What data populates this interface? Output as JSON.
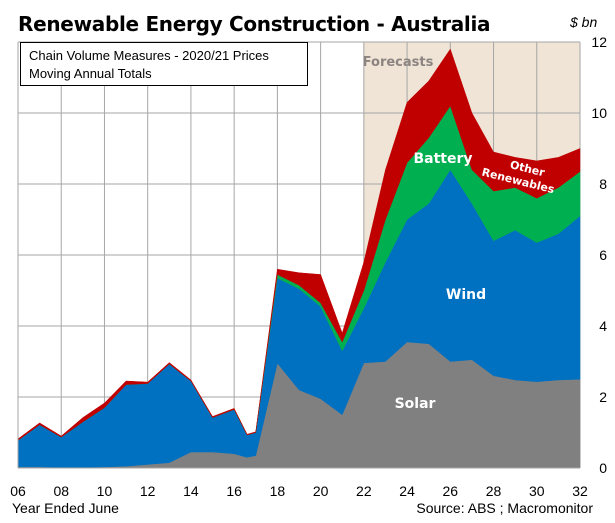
{
  "chart_data": {
    "type": "area",
    "stacked": true,
    "title": "Renewable Energy Construction - Australia",
    "subtitle_lines": [
      "Chain Volume Measures - 2020/21 Prices",
      "Moving Annual Totals"
    ],
    "xlabel": "Year Ended June",
    "ylabel": "$ bn",
    "source": "Source: ABS ; Macromonitor",
    "xlim": [
      6,
      32
    ],
    "ylim": [
      0,
      12
    ],
    "y_axis_side": "right",
    "grid": true,
    "x_ticks": [
      "06",
      "08",
      "10",
      "12",
      "14",
      "16",
      "18",
      "20",
      "22",
      "24",
      "26",
      "28",
      "30",
      "32"
    ],
    "y_ticks": [
      "0",
      "2",
      "4",
      "6",
      "8",
      "10",
      "12"
    ],
    "forecast_region": {
      "from": 22,
      "to": 32,
      "label": "Forecasts",
      "color": "#efe4d6"
    },
    "x": [
      6,
      7,
      8,
      9,
      10,
      11,
      12,
      13,
      14,
      15,
      16,
      16.6,
      17,
      18,
      19,
      20,
      21,
      22,
      23,
      24,
      25,
      26,
      27,
      28,
      29,
      30,
      31,
      32
    ],
    "series": [
      {
        "name": "Solar",
        "color": "#808080",
        "values": [
          0.03,
          0.03,
          0.02,
          0.02,
          0.03,
          0.05,
          0.1,
          0.15,
          0.45,
          0.45,
          0.4,
          0.3,
          0.35,
          2.95,
          2.2,
          1.95,
          1.5,
          2.96,
          3.0,
          3.55,
          3.5,
          3.0,
          3.05,
          2.6,
          2.48,
          2.43,
          2.48,
          2.5
        ]
      },
      {
        "name": "Wind",
        "color": "#0070c0",
        "values": [
          0.75,
          1.19,
          0.85,
          1.28,
          1.67,
          2.3,
          2.28,
          2.78,
          2.0,
          0.97,
          1.25,
          0.63,
          0.65,
          2.4,
          2.85,
          2.6,
          1.8,
          1.54,
          2.8,
          3.45,
          3.95,
          5.4,
          4.4,
          3.8,
          4.22,
          3.92,
          4.12,
          4.6
        ]
      },
      {
        "name": "Battery",
        "color": "#00b050",
        "values": [
          0,
          0,
          0,
          0,
          0,
          0,
          0,
          0,
          0,
          0,
          0,
          0,
          0,
          0.1,
          0.1,
          0.1,
          0.25,
          0.5,
          1.2,
          1.6,
          1.85,
          1.8,
          0.95,
          1.4,
          1.2,
          1.25,
          1.3,
          1.25
        ]
      },
      {
        "name": "Other Renewables",
        "color": "#c00000",
        "values": [
          0.04,
          0.05,
          0.03,
          0.12,
          0.13,
          0.1,
          0.04,
          0.04,
          0.03,
          0.03,
          0.03,
          0.02,
          0.02,
          0.15,
          0.35,
          0.8,
          0.25,
          0.8,
          1.4,
          1.7,
          1.6,
          1.6,
          1.6,
          1.1,
          0.85,
          1.05,
          0.85,
          0.65
        ]
      }
    ],
    "labels": {
      "solar": "Solar",
      "wind": "Wind",
      "battery": "Battery",
      "other_1": "Other",
      "other_2": "Renewables"
    }
  }
}
